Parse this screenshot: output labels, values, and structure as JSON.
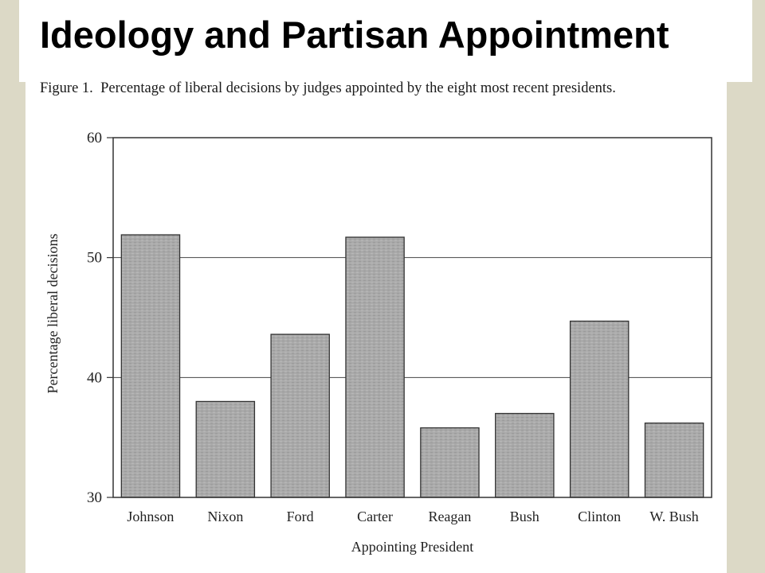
{
  "slide": {
    "title": "Ideology and Partisan Appointment"
  },
  "figure": {
    "caption_label": "Figure 1.",
    "caption_text": "Percentage of liberal decisions by judges appointed by the eight most recent presidents."
  },
  "colors": {
    "background": "#dcd9c6",
    "bar_fill": "#a9a9a9",
    "bar_stroke": "#333333"
  },
  "chart_data": {
    "type": "bar",
    "categories": [
      "Johnson",
      "Nixon",
      "Ford",
      "Carter",
      "Reagan",
      "Bush",
      "Clinton",
      "W. Bush"
    ],
    "values": [
      51.9,
      38.0,
      43.6,
      51.7,
      35.8,
      37.0,
      44.7,
      36.2
    ],
    "xlabel": "Appointing President",
    "ylabel": "Percentage liberal decisions",
    "ylim": [
      30,
      60
    ],
    "yticks": [
      "30",
      "40",
      "50",
      "60"
    ],
    "grid": true,
    "legend": "none"
  }
}
